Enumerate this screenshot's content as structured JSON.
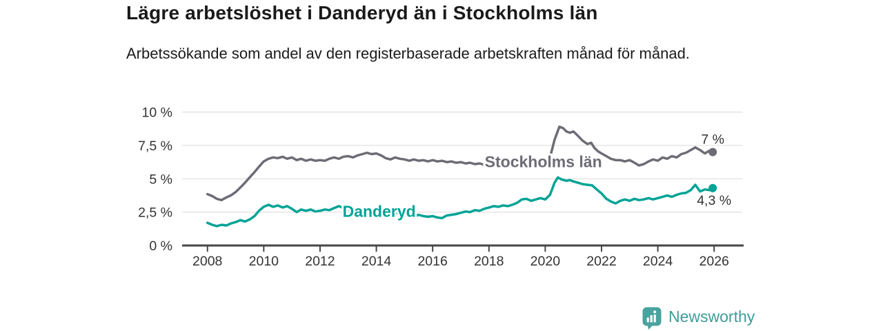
{
  "header": {
    "title": "Lägre arbetslöshet i Danderyd än i Stockholms län",
    "subtitle": "Arbetssökande som andel av den registerbaserade arbetskraften månad för månad."
  },
  "footer": {
    "brand": "Newsworthy"
  },
  "colors": {
    "stockholm_line": "#6d6c75",
    "danderyd_line": "#00a396",
    "axis": "#454545",
    "grid": "#d9d9d9",
    "tick_text": "#333333",
    "end_label_text": "#333333",
    "title_text": "#1a1a1a",
    "brand": "#4aa29e",
    "brand_text": "#3f9c99",
    "background": "#ffffff"
  },
  "chart_data": {
    "type": "line",
    "title": "Lägre arbetslöshet i Danderyd än i Stockholms län",
    "subtitle": "Arbetssökande som andel av den registerbaserade arbetskraften månad för månad.",
    "xlabel": "",
    "ylabel": "",
    "unit": "%",
    "grid": true,
    "legend_position": "inline",
    "xlim": [
      2007.1,
      2027.0
    ],
    "ylim": [
      0,
      10
    ],
    "x_ticks": [
      2008,
      2010,
      2012,
      2014,
      2016,
      2018,
      2020,
      2022,
      2024,
      2026
    ],
    "y_ticks": [
      0,
      2.5,
      5,
      7.5,
      10
    ],
    "y_tick_labels": [
      "0 %",
      "2,5 %",
      "5 %",
      "7,5 %",
      "10 %"
    ],
    "series": [
      {
        "id": "stockholms-lan",
        "name": "Stockholms län",
        "color": "#6d6c75",
        "label_anchor": {
          "x": 2017.85,
          "y": 5.86
        },
        "end_label": {
          "text": "7 %",
          "dx": 0,
          "dy": -12,
          "anchor": "middle"
        },
        "end_value": 7.0,
        "points": [
          [
            2008.0,
            3.85
          ],
          [
            2008.17,
            3.7
          ],
          [
            2008.33,
            3.5
          ],
          [
            2008.5,
            3.4
          ],
          [
            2008.67,
            3.6
          ],
          [
            2008.83,
            3.75
          ],
          [
            2009.0,
            4.0
          ],
          [
            2009.17,
            4.35
          ],
          [
            2009.33,
            4.7
          ],
          [
            2009.5,
            5.1
          ],
          [
            2009.67,
            5.5
          ],
          [
            2009.83,
            5.9
          ],
          [
            2010.0,
            6.3
          ],
          [
            2010.17,
            6.5
          ],
          [
            2010.33,
            6.6
          ],
          [
            2010.5,
            6.55
          ],
          [
            2010.67,
            6.65
          ],
          [
            2010.83,
            6.5
          ],
          [
            2011.0,
            6.6
          ],
          [
            2011.17,
            6.4
          ],
          [
            2011.33,
            6.5
          ],
          [
            2011.5,
            6.35
          ],
          [
            2011.67,
            6.45
          ],
          [
            2011.83,
            6.35
          ],
          [
            2012.0,
            6.4
          ],
          [
            2012.17,
            6.35
          ],
          [
            2012.33,
            6.5
          ],
          [
            2012.5,
            6.6
          ],
          [
            2012.67,
            6.5
          ],
          [
            2012.83,
            6.65
          ],
          [
            2013.0,
            6.7
          ],
          [
            2013.17,
            6.6
          ],
          [
            2013.33,
            6.75
          ],
          [
            2013.5,
            6.85
          ],
          [
            2013.67,
            6.95
          ],
          [
            2013.83,
            6.85
          ],
          [
            2014.0,
            6.9
          ],
          [
            2014.17,
            6.75
          ],
          [
            2014.33,
            6.55
          ],
          [
            2014.5,
            6.45
          ],
          [
            2014.67,
            6.6
          ],
          [
            2014.83,
            6.5
          ],
          [
            2015.0,
            6.45
          ],
          [
            2015.17,
            6.35
          ],
          [
            2015.33,
            6.45
          ],
          [
            2015.5,
            6.35
          ],
          [
            2015.67,
            6.4
          ],
          [
            2015.83,
            6.3
          ],
          [
            2016.0,
            6.4
          ],
          [
            2016.17,
            6.3
          ],
          [
            2016.33,
            6.35
          ],
          [
            2016.5,
            6.25
          ],
          [
            2016.67,
            6.3
          ],
          [
            2016.83,
            6.2
          ],
          [
            2017.0,
            6.25
          ],
          [
            2017.17,
            6.15
          ],
          [
            2017.33,
            6.2
          ],
          [
            2017.5,
            6.1
          ],
          [
            2017.67,
            6.15
          ],
          [
            2017.83,
            6.05
          ],
          [
            2018.0,
            6.1
          ],
          [
            2018.25,
            6.05
          ],
          [
            2018.5,
            6.0
          ],
          [
            2018.75,
            6.1
          ],
          [
            2019.0,
            6.05
          ],
          [
            2019.25,
            6.1
          ],
          [
            2019.5,
            6.0
          ],
          [
            2019.75,
            6.1
          ],
          [
            2020.0,
            6.2
          ],
          [
            2020.17,
            6.6
          ],
          [
            2020.33,
            7.9
          ],
          [
            2020.5,
            8.9
          ],
          [
            2020.63,
            8.8
          ],
          [
            2020.75,
            8.55
          ],
          [
            2020.88,
            8.45
          ],
          [
            2021.0,
            8.55
          ],
          [
            2021.17,
            8.2
          ],
          [
            2021.33,
            7.85
          ],
          [
            2021.5,
            7.6
          ],
          [
            2021.63,
            7.7
          ],
          [
            2021.75,
            7.3
          ],
          [
            2021.88,
            7.05
          ],
          [
            2022.0,
            6.9
          ],
          [
            2022.17,
            6.7
          ],
          [
            2022.33,
            6.5
          ],
          [
            2022.5,
            6.4
          ],
          [
            2022.67,
            6.4
          ],
          [
            2022.83,
            6.3
          ],
          [
            2023.0,
            6.4
          ],
          [
            2023.17,
            6.2
          ],
          [
            2023.33,
            6.0
          ],
          [
            2023.5,
            6.1
          ],
          [
            2023.67,
            6.3
          ],
          [
            2023.83,
            6.45
          ],
          [
            2024.0,
            6.35
          ],
          [
            2024.17,
            6.6
          ],
          [
            2024.33,
            6.5
          ],
          [
            2024.5,
            6.7
          ],
          [
            2024.67,
            6.6
          ],
          [
            2024.83,
            6.85
          ],
          [
            2025.0,
            6.95
          ],
          [
            2025.17,
            7.15
          ],
          [
            2025.33,
            7.35
          ],
          [
            2025.5,
            7.15
          ],
          [
            2025.67,
            6.9
          ],
          [
            2025.83,
            7.1
          ],
          [
            2025.95,
            7.0
          ]
        ]
      },
      {
        "id": "danderyd",
        "name": "Danderyd",
        "color": "#00a396",
        "label_anchor": {
          "x": 2012.8,
          "y": 2.15
        },
        "end_label": {
          "text": "4,3 %",
          "dx": 2,
          "dy": 24,
          "anchor": "middle"
        },
        "end_value": 4.3,
        "points": [
          [
            2008.0,
            1.7
          ],
          [
            2008.17,
            1.55
          ],
          [
            2008.33,
            1.45
          ],
          [
            2008.5,
            1.55
          ],
          [
            2008.67,
            1.5
          ],
          [
            2008.83,
            1.65
          ],
          [
            2009.0,
            1.75
          ],
          [
            2009.17,
            1.9
          ],
          [
            2009.33,
            1.8
          ],
          [
            2009.5,
            1.95
          ],
          [
            2009.67,
            2.2
          ],
          [
            2009.83,
            2.6
          ],
          [
            2010.0,
            2.9
          ],
          [
            2010.17,
            3.05
          ],
          [
            2010.33,
            2.9
          ],
          [
            2010.5,
            3.0
          ],
          [
            2010.67,
            2.85
          ],
          [
            2010.83,
            2.95
          ],
          [
            2011.0,
            2.75
          ],
          [
            2011.17,
            2.5
          ],
          [
            2011.33,
            2.7
          ],
          [
            2011.5,
            2.6
          ],
          [
            2011.67,
            2.7
          ],
          [
            2011.83,
            2.55
          ],
          [
            2012.0,
            2.6
          ],
          [
            2012.17,
            2.7
          ],
          [
            2012.33,
            2.65
          ],
          [
            2012.5,
            2.8
          ],
          [
            2012.67,
            2.95
          ],
          [
            2012.83,
            2.8
          ],
          [
            2013.0,
            2.7
          ],
          [
            2013.17,
            2.75
          ],
          [
            2013.33,
            2.65
          ],
          [
            2013.5,
            2.7
          ],
          [
            2013.67,
            2.6
          ],
          [
            2013.83,
            2.65
          ],
          [
            2014.0,
            2.55
          ],
          [
            2014.17,
            2.45
          ],
          [
            2014.33,
            2.4
          ],
          [
            2014.5,
            2.35
          ],
          [
            2014.67,
            2.45
          ],
          [
            2014.83,
            2.4
          ],
          [
            2015.0,
            2.35
          ],
          [
            2015.17,
            2.25
          ],
          [
            2015.33,
            2.15
          ],
          [
            2015.5,
            2.3
          ],
          [
            2015.67,
            2.2
          ],
          [
            2015.83,
            2.15
          ],
          [
            2016.0,
            2.2
          ],
          [
            2016.17,
            2.1
          ],
          [
            2016.33,
            2.05
          ],
          [
            2016.5,
            2.25
          ],
          [
            2016.67,
            2.3
          ],
          [
            2016.83,
            2.35
          ],
          [
            2017.0,
            2.45
          ],
          [
            2017.17,
            2.55
          ],
          [
            2017.33,
            2.5
          ],
          [
            2017.5,
            2.65
          ],
          [
            2017.67,
            2.6
          ],
          [
            2017.83,
            2.75
          ],
          [
            2018.0,
            2.85
          ],
          [
            2018.17,
            2.95
          ],
          [
            2018.33,
            2.9
          ],
          [
            2018.5,
            3.0
          ],
          [
            2018.67,
            2.95
          ],
          [
            2018.83,
            3.05
          ],
          [
            2019.0,
            3.2
          ],
          [
            2019.17,
            3.45
          ],
          [
            2019.33,
            3.5
          ],
          [
            2019.5,
            3.35
          ],
          [
            2019.67,
            3.45
          ],
          [
            2019.83,
            3.55
          ],
          [
            2020.0,
            3.45
          ],
          [
            2020.17,
            3.8
          ],
          [
            2020.33,
            4.7
          ],
          [
            2020.45,
            5.1
          ],
          [
            2020.58,
            4.95
          ],
          [
            2020.75,
            4.85
          ],
          [
            2020.88,
            4.9
          ],
          [
            2021.0,
            4.8
          ],
          [
            2021.17,
            4.7
          ],
          [
            2021.33,
            4.6
          ],
          [
            2021.5,
            4.55
          ],
          [
            2021.67,
            4.5
          ],
          [
            2021.83,
            4.2
          ],
          [
            2022.0,
            3.9
          ],
          [
            2022.17,
            3.5
          ],
          [
            2022.33,
            3.3
          ],
          [
            2022.5,
            3.15
          ],
          [
            2022.67,
            3.35
          ],
          [
            2022.83,
            3.45
          ],
          [
            2023.0,
            3.35
          ],
          [
            2023.17,
            3.5
          ],
          [
            2023.33,
            3.4
          ],
          [
            2023.5,
            3.45
          ],
          [
            2023.67,
            3.55
          ],
          [
            2023.83,
            3.45
          ],
          [
            2024.0,
            3.55
          ],
          [
            2024.17,
            3.65
          ],
          [
            2024.33,
            3.75
          ],
          [
            2024.5,
            3.65
          ],
          [
            2024.67,
            3.8
          ],
          [
            2024.83,
            3.9
          ],
          [
            2025.0,
            3.95
          ],
          [
            2025.17,
            4.15
          ],
          [
            2025.33,
            4.55
          ],
          [
            2025.5,
            4.05
          ],
          [
            2025.67,
            4.2
          ],
          [
            2025.83,
            4.15
          ],
          [
            2025.95,
            4.3
          ]
        ]
      }
    ]
  }
}
